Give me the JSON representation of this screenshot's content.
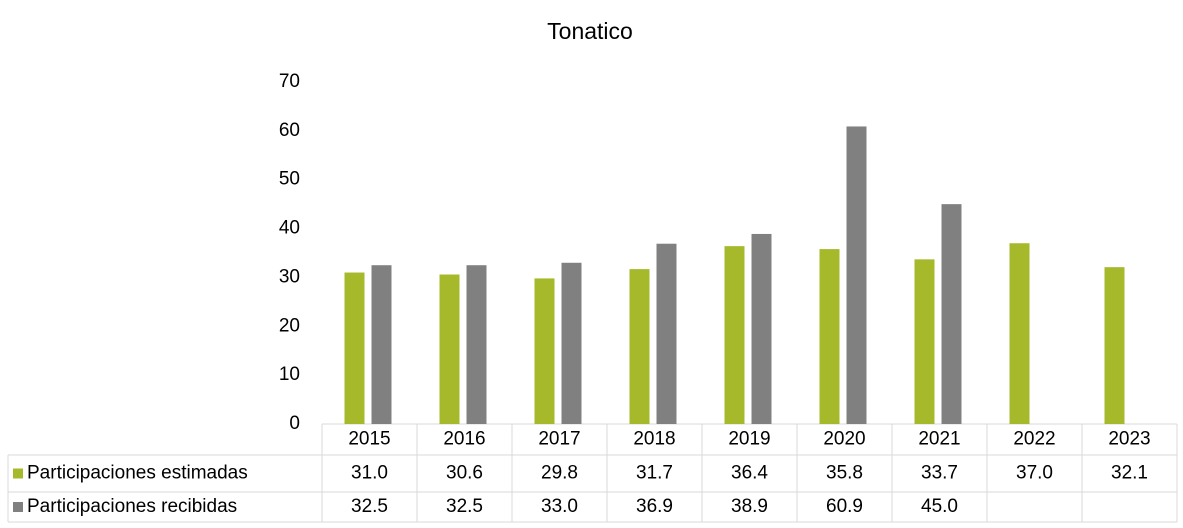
{
  "chart_data": {
    "type": "bar",
    "title": "Tonatico",
    "categories": [
      "2015",
      "2016",
      "2017",
      "2018",
      "2019",
      "2020",
      "2021",
      "2022",
      "2023"
    ],
    "series": [
      {
        "name": "Participaciones estimadas",
        "color": "#a5b92b",
        "values": [
          31.0,
          30.6,
          29.8,
          31.7,
          36.4,
          35.8,
          33.7,
          37.0,
          32.1
        ],
        "value_labels": [
          "31.0",
          "30.6",
          "29.8",
          "31.7",
          "36.4",
          "35.8",
          "33.7",
          "37.0",
          "32.1"
        ]
      },
      {
        "name": "Participaciones recibidas",
        "color": "#808080",
        "values": [
          32.5,
          32.5,
          33.0,
          36.9,
          38.9,
          60.9,
          45.0,
          null,
          null
        ],
        "value_labels": [
          "32.5",
          "32.5",
          "33.0",
          "36.9",
          "38.9",
          "60.9",
          "45.0",
          null,
          null
        ]
      }
    ],
    "ylim": [
      0,
      70
    ],
    "yticks": [
      0,
      10,
      20,
      30,
      40,
      50,
      60,
      70
    ],
    "grid": false
  }
}
